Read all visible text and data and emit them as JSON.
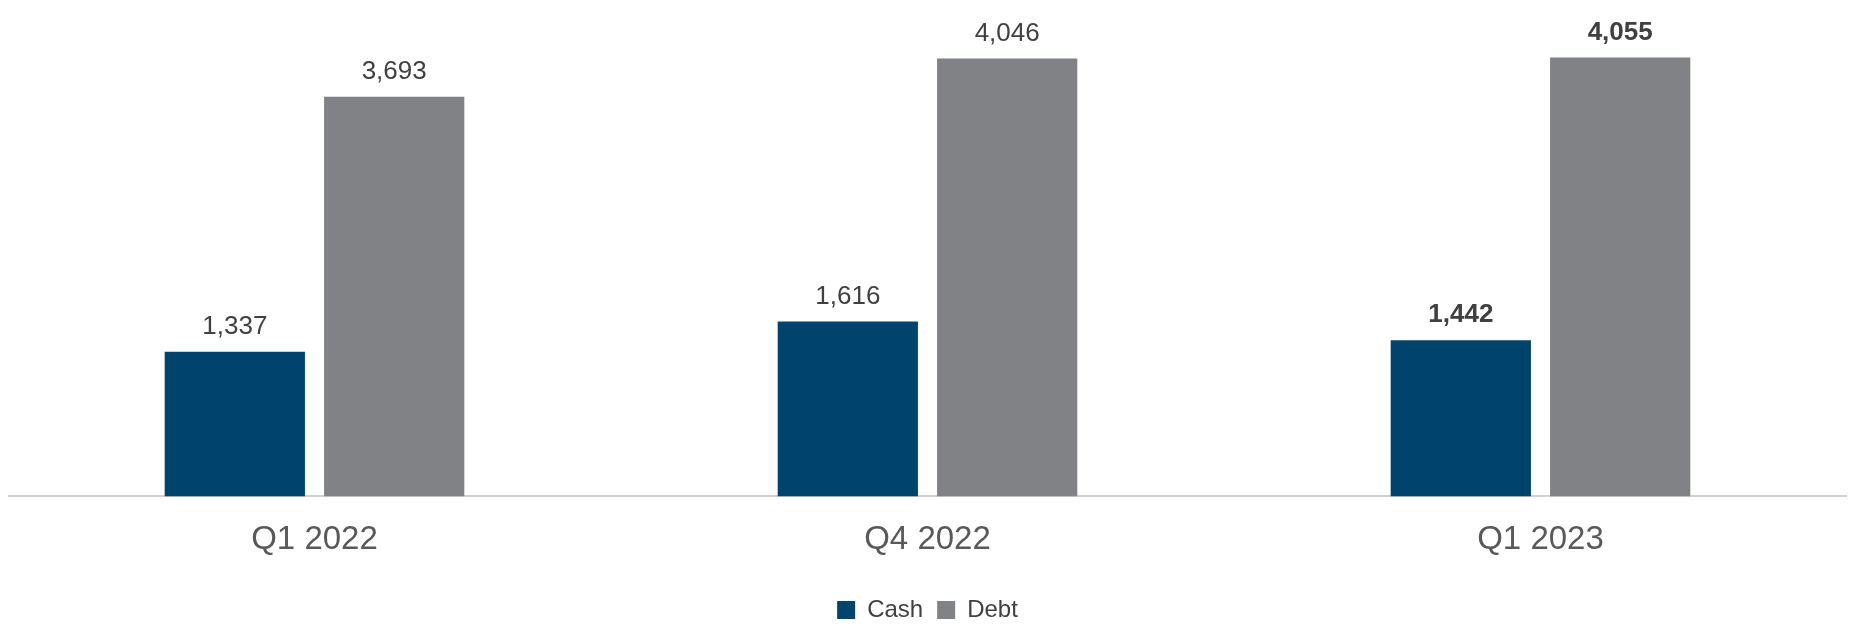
{
  "chart_data": {
    "type": "bar",
    "categories": [
      "Q1 2022",
      "Q4 2022",
      "Q1 2023"
    ],
    "series": [
      {
        "name": "Cash",
        "color": "#00446e",
        "values": [
          1337,
          1616,
          1442
        ],
        "value_labels": [
          "1,337",
          "1,616",
          "1,442"
        ]
      },
      {
        "name": "Debt",
        "color": "#808285",
        "values": [
          3693,
          4046,
          4055
        ],
        "value_labels": [
          "3,693",
          "4,046",
          "4,055"
        ]
      }
    ],
    "legend": "bottom",
    "grid": false
  }
}
